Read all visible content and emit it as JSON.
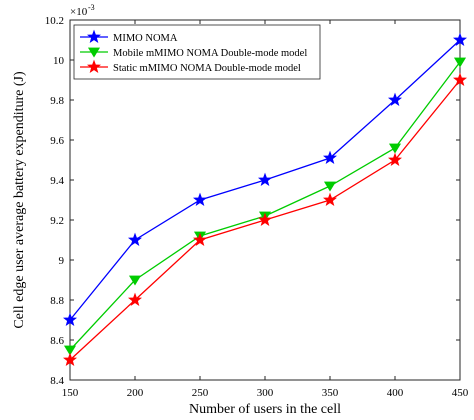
{
  "chart_data": {
    "type": "line",
    "title": "",
    "xlabel": "Number of users in the cell",
    "ylabel": "Cell edge user average battery expenditure (J)",
    "y_exponent_label": "×10",
    "y_exponent_power": "-3",
    "x": [
      150,
      200,
      250,
      300,
      350,
      400,
      450
    ],
    "x_ticks": [
      "150",
      "200",
      "250",
      "300",
      "350",
      "400",
      "450"
    ],
    "y_ticks": [
      "8.4",
      "8.6",
      "8.8",
      "9",
      "9.2",
      "9.4",
      "9.6",
      "9.8",
      "10",
      "10.2"
    ],
    "xlim": [
      150,
      450
    ],
    "ylim": [
      8.4,
      10.2
    ],
    "grid": false,
    "legend_position": "top-left",
    "series": [
      {
        "name": "MIMO NOMA",
        "color": "#0000ff",
        "marker": "star",
        "values": [
          8.7,
          9.1,
          9.3,
          9.4,
          9.51,
          9.8,
          10.1
        ]
      },
      {
        "name": "Mobile mMIMO NOMA Double-mode model",
        "color": "#00cc00",
        "marker": "triangle-down",
        "values": [
          8.55,
          8.9,
          9.12,
          9.22,
          9.37,
          9.56,
          9.99
        ]
      },
      {
        "name": "Static mMIMO NOMA Double-mode model",
        "color": "#ff0000",
        "marker": "star",
        "values": [
          8.5,
          8.8,
          9.1,
          9.2,
          9.3,
          9.5,
          9.9
        ]
      }
    ]
  }
}
